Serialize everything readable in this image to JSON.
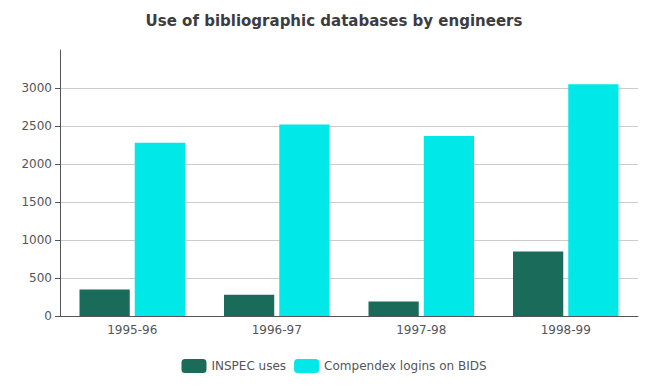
{
  "chart_data": {
    "type": "bar",
    "title": "Use of bibliographic databases by engineers",
    "categories": [
      "1995-96",
      "1996-97",
      "1997-98",
      "1998-99"
    ],
    "series": [
      {
        "name": "INSPEC uses",
        "color": "#1a6b5a",
        "values": [
          350,
          280,
          190,
          850
        ]
      },
      {
        "name": "Compendex logins on BIDS",
        "color": "#00e8e8",
        "values": [
          2280,
          2520,
          2370,
          3050
        ]
      }
    ],
    "ylim": [
      0,
      3500
    ],
    "yticks": [
      0,
      500,
      1000,
      1500,
      2000,
      2500,
      3000
    ],
    "grid": true,
    "legend": "bottom"
  }
}
